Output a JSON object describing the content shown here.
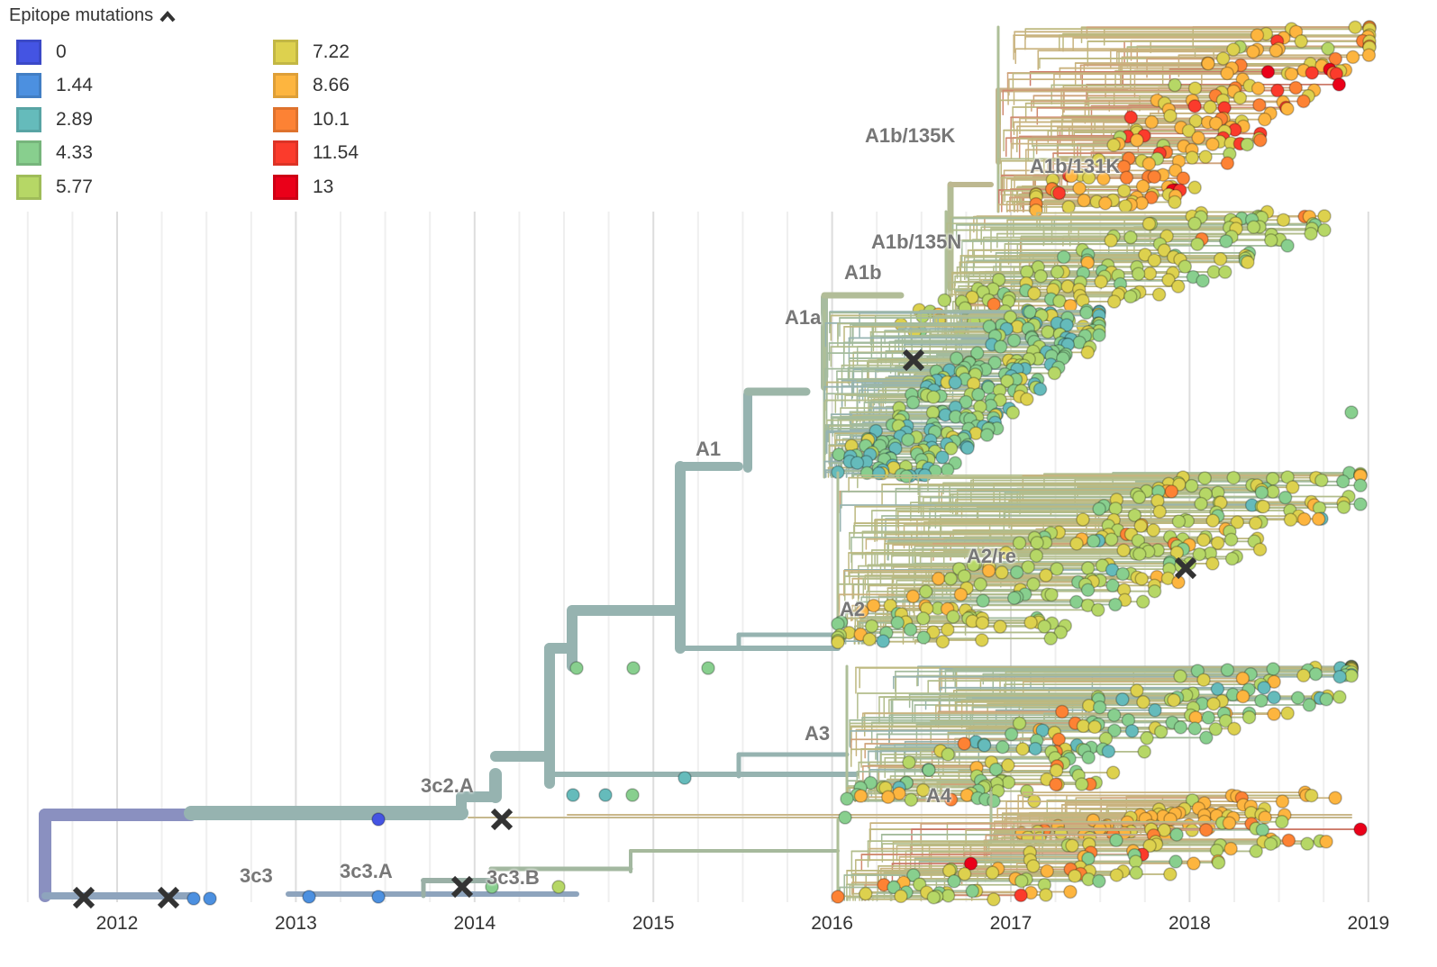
{
  "legend": {
    "title": "Epitope mutations",
    "toggle_icon": "chevron-up-icon",
    "items": [
      {
        "label": "0",
        "color": "#4454e3"
      },
      {
        "label": "1.44",
        "color": "#4c90e0"
      },
      {
        "label": "2.89",
        "color": "#65bbbb"
      },
      {
        "label": "4.33",
        "color": "#88cf8e"
      },
      {
        "label": "5.77",
        "color": "#b6d766"
      },
      {
        "label": "7.22",
        "color": "#ddd14e"
      },
      {
        "label": "8.66",
        "color": "#fdb53f"
      },
      {
        "label": "10.1",
        "color": "#fd8234"
      },
      {
        "label": "11.54",
        "color": "#fb3b2c"
      },
      {
        "label": "13",
        "color": "#ea0019"
      }
    ]
  },
  "axis": {
    "years": [
      "2012",
      "2013",
      "2014",
      "2015",
      "2016",
      "2017",
      "2018",
      "2019"
    ]
  },
  "clades": [
    {
      "label": "A1b/135K"
    },
    {
      "label": "A1b/131K"
    },
    {
      "label": "A1b/135N"
    },
    {
      "label": "A1b"
    },
    {
      "label": "A1a"
    },
    {
      "label": "A1"
    },
    {
      "label": "A2/re"
    },
    {
      "label": "A2"
    },
    {
      "label": "A3"
    },
    {
      "label": "A4"
    },
    {
      "label": "3c2.A"
    },
    {
      "label": "3c3"
    },
    {
      "label": "3c3.A"
    },
    {
      "label": "3c3.B"
    }
  ],
  "markers": {
    "icon": "x-mark-icon",
    "count": 6
  }
}
